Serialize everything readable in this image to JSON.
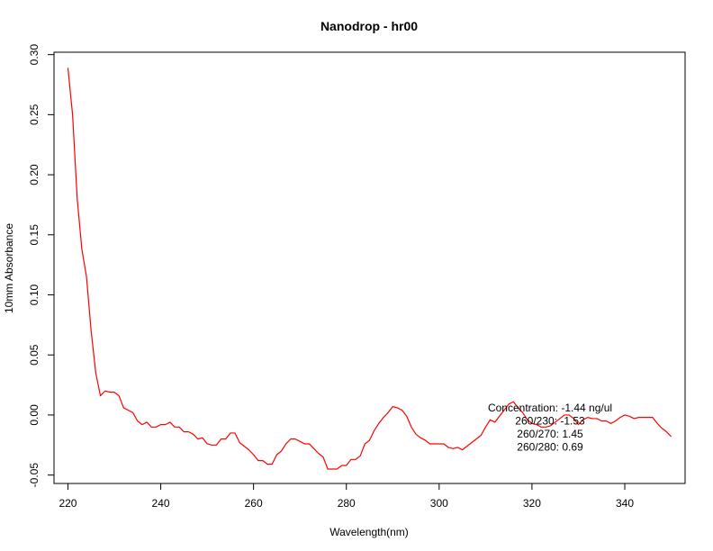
{
  "chart_data": {
    "type": "line",
    "title": "Nanodrop - hr00",
    "xlabel": "Wavelength(nm)",
    "ylabel": "10mm Absorbance",
    "xlim": [
      217,
      353
    ],
    "ylim": [
      -0.057,
      0.302
    ],
    "xticks": [
      220,
      240,
      260,
      280,
      300,
      320,
      340
    ],
    "yticks": [
      -0.05,
      0.0,
      0.05,
      0.1,
      0.15,
      0.2,
      0.25,
      0.3
    ],
    "ytick_labels": [
      "-0.05",
      "0.00",
      "0.05",
      "0.10",
      "0.15",
      "0.20",
      "0.25",
      "0.30"
    ],
    "grid": false,
    "series": [
      {
        "color": "#ff0000",
        "x": [
          220,
          221,
          222,
          223,
          224,
          225,
          226,
          227,
          228,
          229,
          230,
          231,
          232,
          233,
          234,
          235,
          236,
          237,
          238,
          239,
          240,
          241,
          242,
          243,
          244,
          245,
          246,
          247,
          248,
          249,
          250,
          251,
          252,
          253,
          254,
          255,
          256,
          257,
          258,
          259,
          260,
          261,
          262,
          263,
          264,
          265,
          266,
          267,
          268,
          269,
          270,
          271,
          272,
          273,
          274,
          275,
          276,
          277,
          278,
          279,
          280,
          281,
          282,
          283,
          284,
          285,
          286,
          287,
          288,
          289,
          290,
          291,
          292,
          293,
          294,
          295,
          296,
          297,
          298,
          299,
          300,
          301,
          302,
          303,
          304,
          305,
          306,
          307,
          308,
          309,
          310,
          311,
          312,
          313,
          314,
          315,
          316,
          317,
          318,
          319,
          320,
          321,
          322,
          323,
          324,
          325,
          326,
          327,
          328,
          329,
          330,
          331,
          332,
          333,
          334,
          335,
          336,
          337,
          338,
          339,
          340,
          341,
          342,
          343,
          344,
          345,
          346,
          347,
          348,
          349,
          350
        ],
        "y": [
          0.289,
          0.25,
          0.18,
          0.138,
          0.115,
          0.07,
          0.035,
          0.016,
          0.02,
          0.019,
          0.019,
          0.016,
          0.006,
          0.004,
          0.002,
          -0.005,
          -0.008,
          -0.006,
          -0.01,
          -0.01,
          -0.008,
          -0.008,
          -0.006,
          -0.01,
          -0.01,
          -0.014,
          -0.014,
          -0.016,
          -0.02,
          -0.019,
          -0.024,
          -0.025,
          -0.025,
          -0.02,
          -0.02,
          -0.015,
          -0.015,
          -0.023,
          -0.026,
          -0.029,
          -0.033,
          -0.038,
          -0.038,
          -0.041,
          -0.041,
          -0.033,
          -0.03,
          -0.024,
          -0.02,
          -0.02,
          -0.022,
          -0.024,
          -0.024,
          -0.028,
          -0.032,
          -0.035,
          -0.045,
          -0.045,
          -0.045,
          -0.042,
          -0.042,
          -0.037,
          -0.037,
          -0.034,
          -0.024,
          -0.021,
          -0.013,
          -0.007,
          -0.002,
          0.002,
          0.007,
          0.006,
          0.004,
          -0.001,
          -0.01,
          -0.016,
          -0.019,
          -0.021,
          -0.024,
          -0.024,
          -0.024,
          -0.024,
          -0.027,
          -0.028,
          -0.027,
          -0.029,
          -0.026,
          -0.023,
          -0.02,
          -0.017,
          -0.01,
          -0.004,
          -0.006,
          -0.001,
          0.004,
          0.009,
          0.011,
          0.006,
          0.002,
          -0.004,
          -0.007,
          -0.008,
          -0.01,
          -0.01,
          -0.009,
          -0.006,
          -0.003,
          0.0,
          0.0,
          -0.003,
          -0.008,
          -0.004,
          -0.002,
          -0.003,
          -0.003,
          -0.005,
          -0.005,
          -0.007,
          -0.005,
          -0.002,
          0.0,
          -0.001,
          -0.003,
          -0.002,
          -0.002,
          -0.002,
          -0.002,
          -0.007,
          -0.011,
          -0.014,
          -0.018
        ]
      }
    ],
    "annotations": [
      "Concentration: -1.44 ng/ul",
      "260/230: -1.53",
      "260/270: 1.45",
      "260/280: 0.69"
    ]
  }
}
